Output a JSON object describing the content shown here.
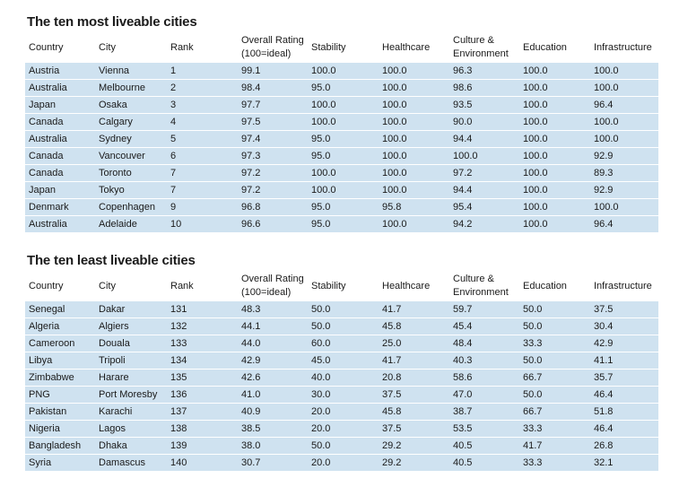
{
  "chart_data": [
    {
      "type": "table",
      "title": "The ten most liveable cities",
      "columns": [
        "Country",
        "City",
        "Rank",
        "Overall Rating (100=ideal)",
        "Stability",
        "Healthcare",
        "Culture & Environment",
        "Education",
        "Infrastructure"
      ],
      "rows": [
        [
          "Austria",
          "Vienna",
          "1",
          "99.1",
          "100.0",
          "100.0",
          "96.3",
          "100.0",
          "100.0"
        ],
        [
          "Australia",
          "Melbourne",
          "2",
          "98.4",
          "95.0",
          "100.0",
          "98.6",
          "100.0",
          "100.0"
        ],
        [
          "Japan",
          "Osaka",
          "3",
          "97.7",
          "100.0",
          "100.0",
          "93.5",
          "100.0",
          "96.4"
        ],
        [
          "Canada",
          "Calgary",
          "4",
          "97.5",
          "100.0",
          "100.0",
          "90.0",
          "100.0",
          "100.0"
        ],
        [
          "Australia",
          "Sydney",
          "5",
          "97.4",
          "95.0",
          "100.0",
          "94.4",
          "100.0",
          "100.0"
        ],
        [
          "Canada",
          "Vancouver",
          "6",
          "97.3",
          "95.0",
          "100.0",
          "100.0",
          "100.0",
          "92.9"
        ],
        [
          "Canada",
          "Toronto",
          "7",
          "97.2",
          "100.0",
          "100.0",
          "97.2",
          "100.0",
          "89.3"
        ],
        [
          "Japan",
          "Tokyo",
          "7",
          "97.2",
          "100.0",
          "100.0",
          "94.4",
          "100.0",
          "92.9"
        ],
        [
          "Denmark",
          "Copenhagen",
          "9",
          "96.8",
          "95.0",
          "95.8",
          "95.4",
          "100.0",
          "100.0"
        ],
        [
          "Australia",
          "Adelaide",
          "10",
          "96.6",
          "95.0",
          "100.0",
          "94.2",
          "100.0",
          "96.4"
        ]
      ]
    },
    {
      "type": "table",
      "title": "The ten least liveable cities",
      "columns": [
        "Country",
        "City",
        "Rank",
        "Overall Rating (100=ideal)",
        "Stability",
        "Healthcare",
        "Culture & Environment",
        "Education",
        "Infrastructure"
      ],
      "rows": [
        [
          "Senegal",
          "Dakar",
          "131",
          "48.3",
          "50.0",
          "41.7",
          "59.7",
          "50.0",
          "37.5"
        ],
        [
          "Algeria",
          "Algiers",
          "132",
          "44.1",
          "50.0",
          "45.8",
          "45.4",
          "50.0",
          "30.4"
        ],
        [
          "Cameroon",
          "Douala",
          "133",
          "44.0",
          "60.0",
          "25.0",
          "48.4",
          "33.3",
          "42.9"
        ],
        [
          "Libya",
          "Tripoli",
          "134",
          "42.9",
          "45.0",
          "41.7",
          "40.3",
          "50.0",
          "41.1"
        ],
        [
          "Zimbabwe",
          "Harare",
          "135",
          "42.6",
          "40.0",
          "20.8",
          "58.6",
          "66.7",
          "35.7"
        ],
        [
          "PNG",
          "Port Moresby",
          "136",
          "41.0",
          "30.0",
          "37.5",
          "47.0",
          "50.0",
          "46.4"
        ],
        [
          "Pakistan",
          "Karachi",
          "137",
          "40.9",
          "20.0",
          "45.8",
          "38.7",
          "66.7",
          "51.8"
        ],
        [
          "Nigeria",
          "Lagos",
          "138",
          "38.5",
          "20.0",
          "37.5",
          "53.5",
          "33.3",
          "46.4"
        ],
        [
          "Bangladesh",
          "Dhaka",
          "139",
          "38.0",
          "50.0",
          "29.2",
          "40.5",
          "41.7",
          "26.8"
        ],
        [
          "Syria",
          "Damascus",
          "140",
          "30.7",
          "20.0",
          "29.2",
          "40.5",
          "33.3",
          "32.1"
        ]
      ]
    }
  ],
  "header_lines": {
    "overall": [
      "Overall Rating",
      "(100=ideal)"
    ],
    "culture": [
      "Culture &",
      "Environment"
    ]
  },
  "colors": {
    "row_fill": "#cfe2f0",
    "text": "#1a1a1a"
  }
}
